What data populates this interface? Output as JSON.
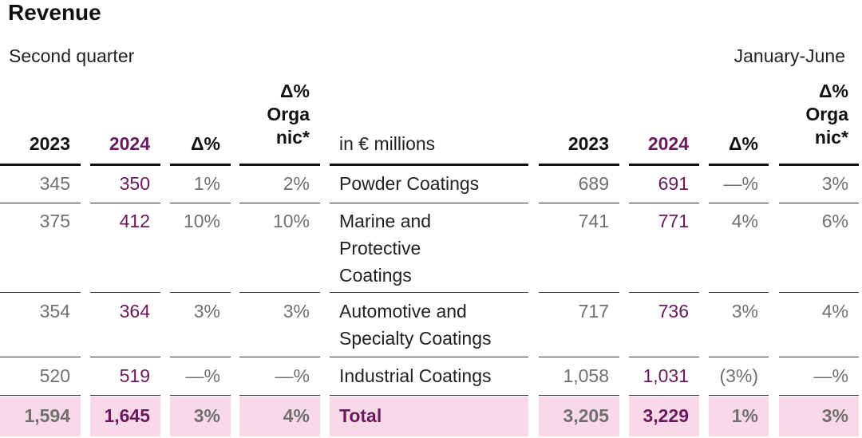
{
  "title": "Revenue",
  "period_left": "Second quarter",
  "period_right": "January-June",
  "headers": {
    "y2023": "2023",
    "y2024": "2024",
    "delta": "Δ%",
    "organic": [
      "Δ%",
      "Orga",
      "nic*"
    ],
    "label": "in € millions"
  },
  "rows": [
    {
      "label": [
        "Powder Coatings"
      ],
      "q": [
        "345",
        "350",
        "1%",
        "2%"
      ],
      "h": [
        "689",
        "691",
        "—%",
        "3%"
      ]
    },
    {
      "label": [
        "Marine and",
        "Protective",
        "Coatings"
      ],
      "q": [
        "375",
        "412",
        "10%",
        "10%"
      ],
      "h": [
        "741",
        "771",
        "4%",
        "6%"
      ]
    },
    {
      "label": [
        "Automotive and",
        "Specialty Coatings"
      ],
      "q": [
        "354",
        "364",
        "3%",
        "3%"
      ],
      "h": [
        "717",
        "736",
        "3%",
        "4%"
      ]
    },
    {
      "label": [
        "Industrial Coatings"
      ],
      "q": [
        "520",
        "519",
        "—%",
        "—%"
      ],
      "h": [
        "1,058",
        "1,031",
        "(3%)",
        "—%"
      ]
    }
  ],
  "total": {
    "label": "Total",
    "q": [
      "1,594",
      "1,645",
      "3%",
      "4%"
    ],
    "h": [
      "3,205",
      "3,229",
      "1%",
      "3%"
    ]
  },
  "colors": {
    "accent_purple": "#6a1a5c",
    "total_bg": "#f9d9e8"
  }
}
